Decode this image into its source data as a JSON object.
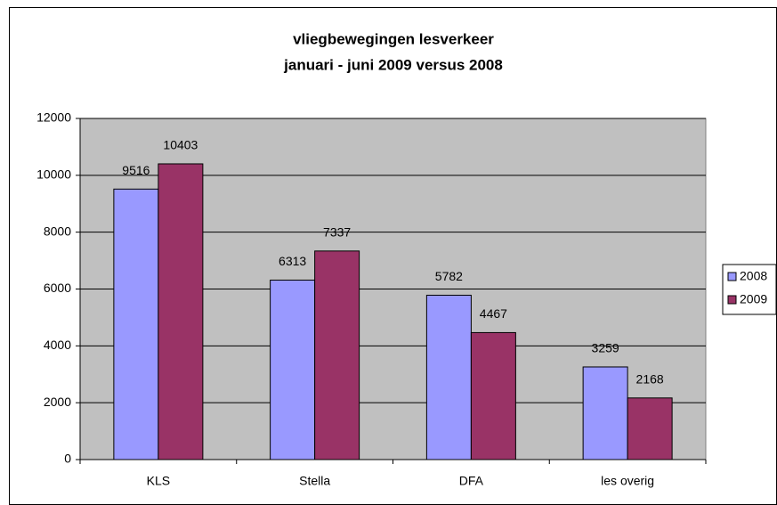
{
  "chart_data": {
    "type": "bar",
    "title": "vliegbewegingen lesverkeer",
    "subtitle": "januari - juni 2009 versus 2008",
    "categories": [
      "KLS",
      "Stella",
      "DFA",
      "les overig"
    ],
    "series": [
      {
        "name": "2008",
        "color": "#9999ff",
        "values": [
          9516,
          6313,
          5782,
          3259
        ]
      },
      {
        "name": "2009",
        "color": "#993366",
        "values": [
          10403,
          7337,
          4467,
          2168
        ]
      }
    ],
    "ylim": [
      0,
      12000
    ],
    "yticks": [
      0,
      2000,
      4000,
      6000,
      8000,
      10000,
      12000
    ],
    "grid": true,
    "legend": "right"
  }
}
